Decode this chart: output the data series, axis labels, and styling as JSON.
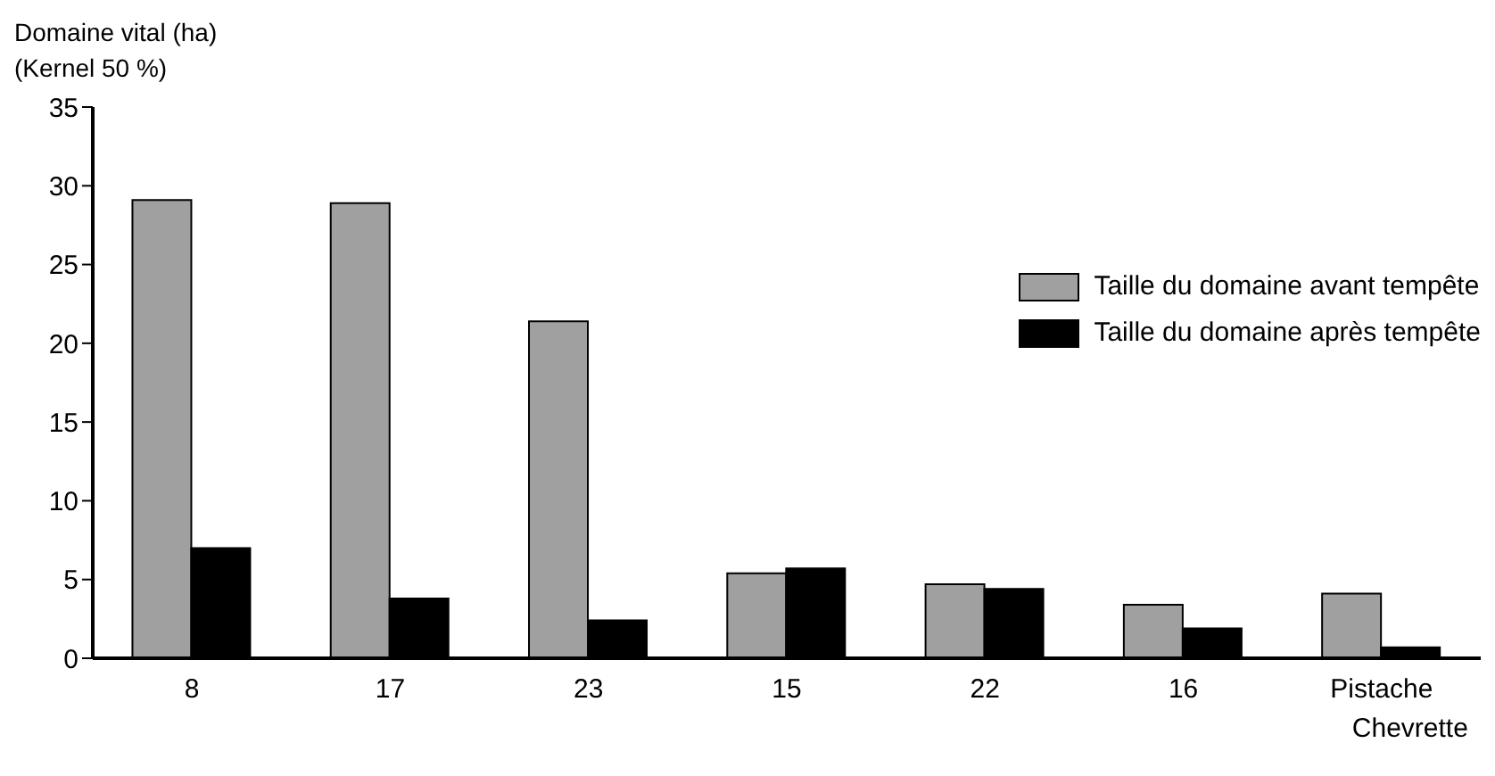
{
  "chart_data": {
    "type": "bar",
    "ylabel": "Domaine vital (ha)\n(Kernel 50 %)",
    "categories": [
      "8",
      "17",
      "23",
      "15",
      "22",
      "16",
      "Pistache\nChevrette"
    ],
    "series": [
      {
        "name": "Taille du domaine avant tempête",
        "color": "#a0a0a0",
        "values": [
          29.1,
          28.9,
          21.4,
          5.4,
          4.7,
          3.4,
          4.1
        ]
      },
      {
        "name": "Taille du domaine après tempête",
        "color": "#000000",
        "values": [
          7.0,
          3.8,
          2.4,
          5.7,
          4.4,
          1.9,
          0.7
        ]
      }
    ],
    "ylim": [
      0,
      35
    ],
    "yticks": [
      0,
      5,
      10,
      15,
      20,
      25,
      30,
      35
    ],
    "grid": false,
    "legend": "top right"
  }
}
